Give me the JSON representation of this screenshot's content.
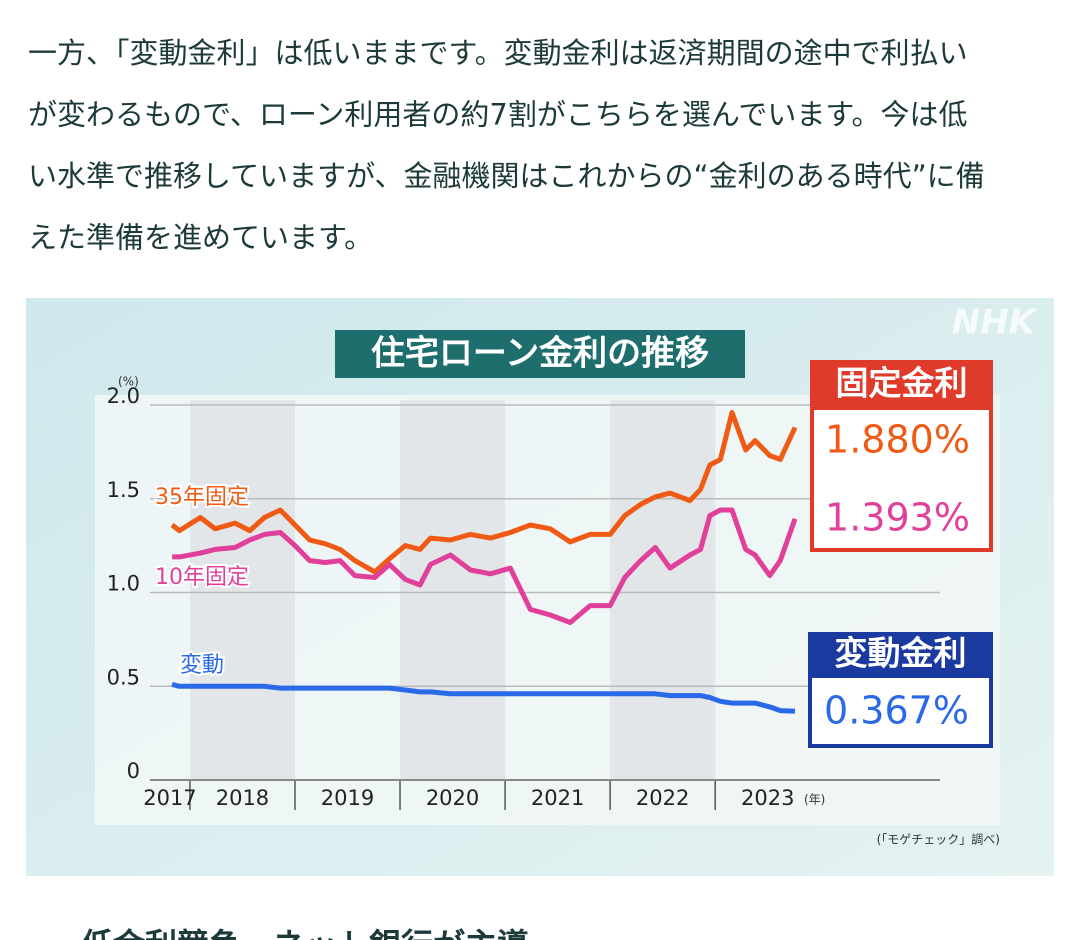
{
  "article": {
    "paragraph_lines": [
      "一方、「変動金利」は低いままです。変動金利は返済期間の途中で利払い",
      "が変わるもので、ローン利用者の約7割がこちらを選んでいます。今は低",
      "い水準で推移していますが、金融機関はこれからの“金利のある時代”に備",
      "えた準備を進めています。"
    ],
    "next_heading": "低金利競争　ネット銀行が主導"
  },
  "chart_data": {
    "type": "line",
    "title": "住宅ローン金利の推移",
    "logo": "NHK",
    "y_unit": "(%)",
    "x_unit": "(年)",
    "source": "(「モゲチェック」調べ)",
    "x": [
      2017.83,
      2017.9,
      2018.1,
      2018.24,
      2018.43,
      2018.57,
      2018.71,
      2018.86,
      2019.0,
      2019.14,
      2019.29,
      2019.43,
      2019.57,
      2019.76,
      2019.9,
      2020.05,
      2020.19,
      2020.29,
      2020.48,
      2020.67,
      2020.86,
      2021.05,
      2021.24,
      2021.43,
      2021.62,
      2021.81,
      2022.0,
      2022.14,
      2022.29,
      2022.43,
      2022.57,
      2022.76,
      2022.86,
      2022.95,
      2023.05,
      2023.16,
      2023.29,
      2023.38,
      2023.52,
      2023.62,
      2023.76
    ],
    "series": [
      {
        "name": "35年固定",
        "color": "#f05a14",
        "values": [
          1.36,
          1.33,
          1.4,
          1.34,
          1.37,
          1.33,
          1.4,
          1.44,
          1.36,
          1.28,
          1.26,
          1.23,
          1.17,
          1.11,
          1.18,
          1.25,
          1.23,
          1.29,
          1.28,
          1.31,
          1.29,
          1.32,
          1.36,
          1.34,
          1.27,
          1.31,
          1.31,
          1.41,
          1.47,
          1.51,
          1.53,
          1.49,
          1.55,
          1.68,
          1.71,
          1.96,
          1.76,
          1.81,
          1.73,
          1.71,
          1.88
        ]
      },
      {
        "name": "10年固定",
        "color": "#e0409a",
        "values": [
          1.19,
          1.19,
          1.21,
          1.23,
          1.24,
          1.28,
          1.31,
          1.32,
          1.25,
          1.17,
          1.16,
          1.17,
          1.09,
          1.08,
          1.15,
          1.07,
          1.04,
          1.15,
          1.2,
          1.12,
          1.1,
          1.13,
          0.91,
          0.88,
          0.84,
          0.93,
          0.93,
          1.08,
          1.17,
          1.24,
          1.13,
          1.2,
          1.23,
          1.41,
          1.44,
          1.44,
          1.23,
          1.2,
          1.09,
          1.17,
          1.393
        ]
      },
      {
        "name": "変動",
        "color": "#2a6ae8",
        "values": [
          0.51,
          0.5,
          0.5,
          0.5,
          0.5,
          0.5,
          0.5,
          0.49,
          0.49,
          0.49,
          0.49,
          0.49,
          0.49,
          0.49,
          0.49,
          0.48,
          0.47,
          0.47,
          0.46,
          0.46,
          0.46,
          0.46,
          0.46,
          0.46,
          0.46,
          0.46,
          0.46,
          0.46,
          0.46,
          0.46,
          0.45,
          0.45,
          0.45,
          0.44,
          0.42,
          0.41,
          0.41,
          0.41,
          0.39,
          0.37,
          0.367
        ]
      }
    ],
    "callouts": [
      {
        "heading": "固定金利",
        "labels": [
          "1.880%",
          "1.393%"
        ]
      },
      {
        "heading": "変動金利",
        "labels": [
          "0.367%"
        ]
      }
    ],
    "xlim": [
      2017.62,
      2025.14
    ],
    "xticks": [
      {
        "value": 2017.81,
        "label": "2017"
      },
      {
        "value": 2018.5,
        "label": "2018"
      },
      {
        "value": 2019.5,
        "label": "2019"
      },
      {
        "value": 2020.5,
        "label": "2020"
      },
      {
        "value": 2021.5,
        "label": "2021"
      },
      {
        "value": 2022.5,
        "label": "2022"
      },
      {
        "value": 2023.5,
        "label": "2023"
      }
    ],
    "ylim": [
      0,
      2.0
    ],
    "yticks": [
      0,
      0.5,
      {
        "value": 1.0,
        "label": "1.0"
      },
      1.5,
      {
        "value": 2.0,
        "label": "2.0"
      }
    ],
    "grid": true
  }
}
